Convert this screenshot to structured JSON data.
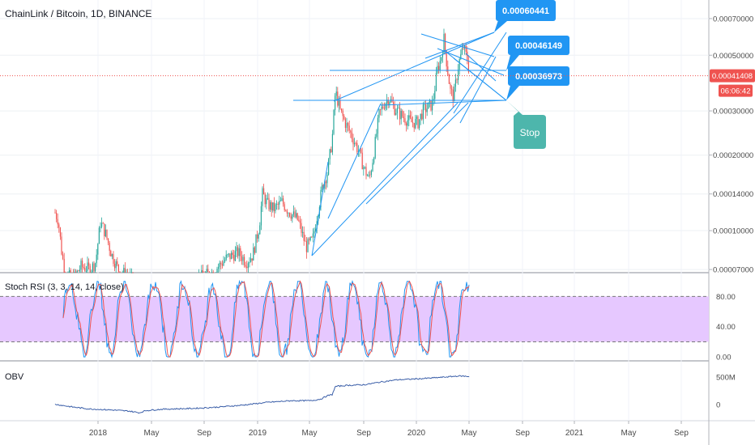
{
  "header": {
    "title": "ChainLink / Bitcoin, 1D, BINANCE"
  },
  "colors": {
    "up": "#26a69a",
    "down": "#ef5350",
    "trend": "#2196f3",
    "price_line": "#ef5350",
    "stoch_band": "#e6c8ff",
    "stoch_k": "#2196f3",
    "stoch_d": "#ef5350",
    "obv": "#3a5ea8",
    "label_blue": "#2196f3",
    "label_teal": "#4db6ac",
    "axis_text": "#4a4a4a"
  },
  "chart_data": [
    {
      "type": "line",
      "subtype": "candlestick",
      "scale": "log",
      "ylim": [
        6.8e-05,
        0.00083
      ],
      "y_ticks": [
        "0.00070000",
        "0.00050000",
        "0.00030000",
        "0.00020000",
        "0.00014000",
        "0.00010000",
        "0.00007000"
      ],
      "x_ticks": [
        "2018",
        "May",
        "Sep",
        "2019",
        "May",
        "Sep",
        "2020",
        "May",
        "Sep",
        "2021",
        "May",
        "Sep"
      ],
      "last_price": "0.00041408",
      "countdown": "06:06:42",
      "annotations": [
        {
          "text": "0.00060441",
          "value": 0.00060441
        },
        {
          "text": "0.00046149",
          "value": 0.00046149
        },
        {
          "text": "0.00036973",
          "value": 0.00036973
        },
        {
          "text": "Stop",
          "value": 0.00036973
        }
      ]
    },
    {
      "type": "line",
      "name": "Stoch RSI (3, 3, 14, 14, close)",
      "ylim": [
        -2,
        105
      ],
      "y_ticks": [
        "80.00",
        "40.00",
        "0.00"
      ],
      "band": [
        20,
        80
      ]
    },
    {
      "type": "line",
      "name": "OBV",
      "y_ticks": [
        "500M",
        "0"
      ]
    }
  ]
}
